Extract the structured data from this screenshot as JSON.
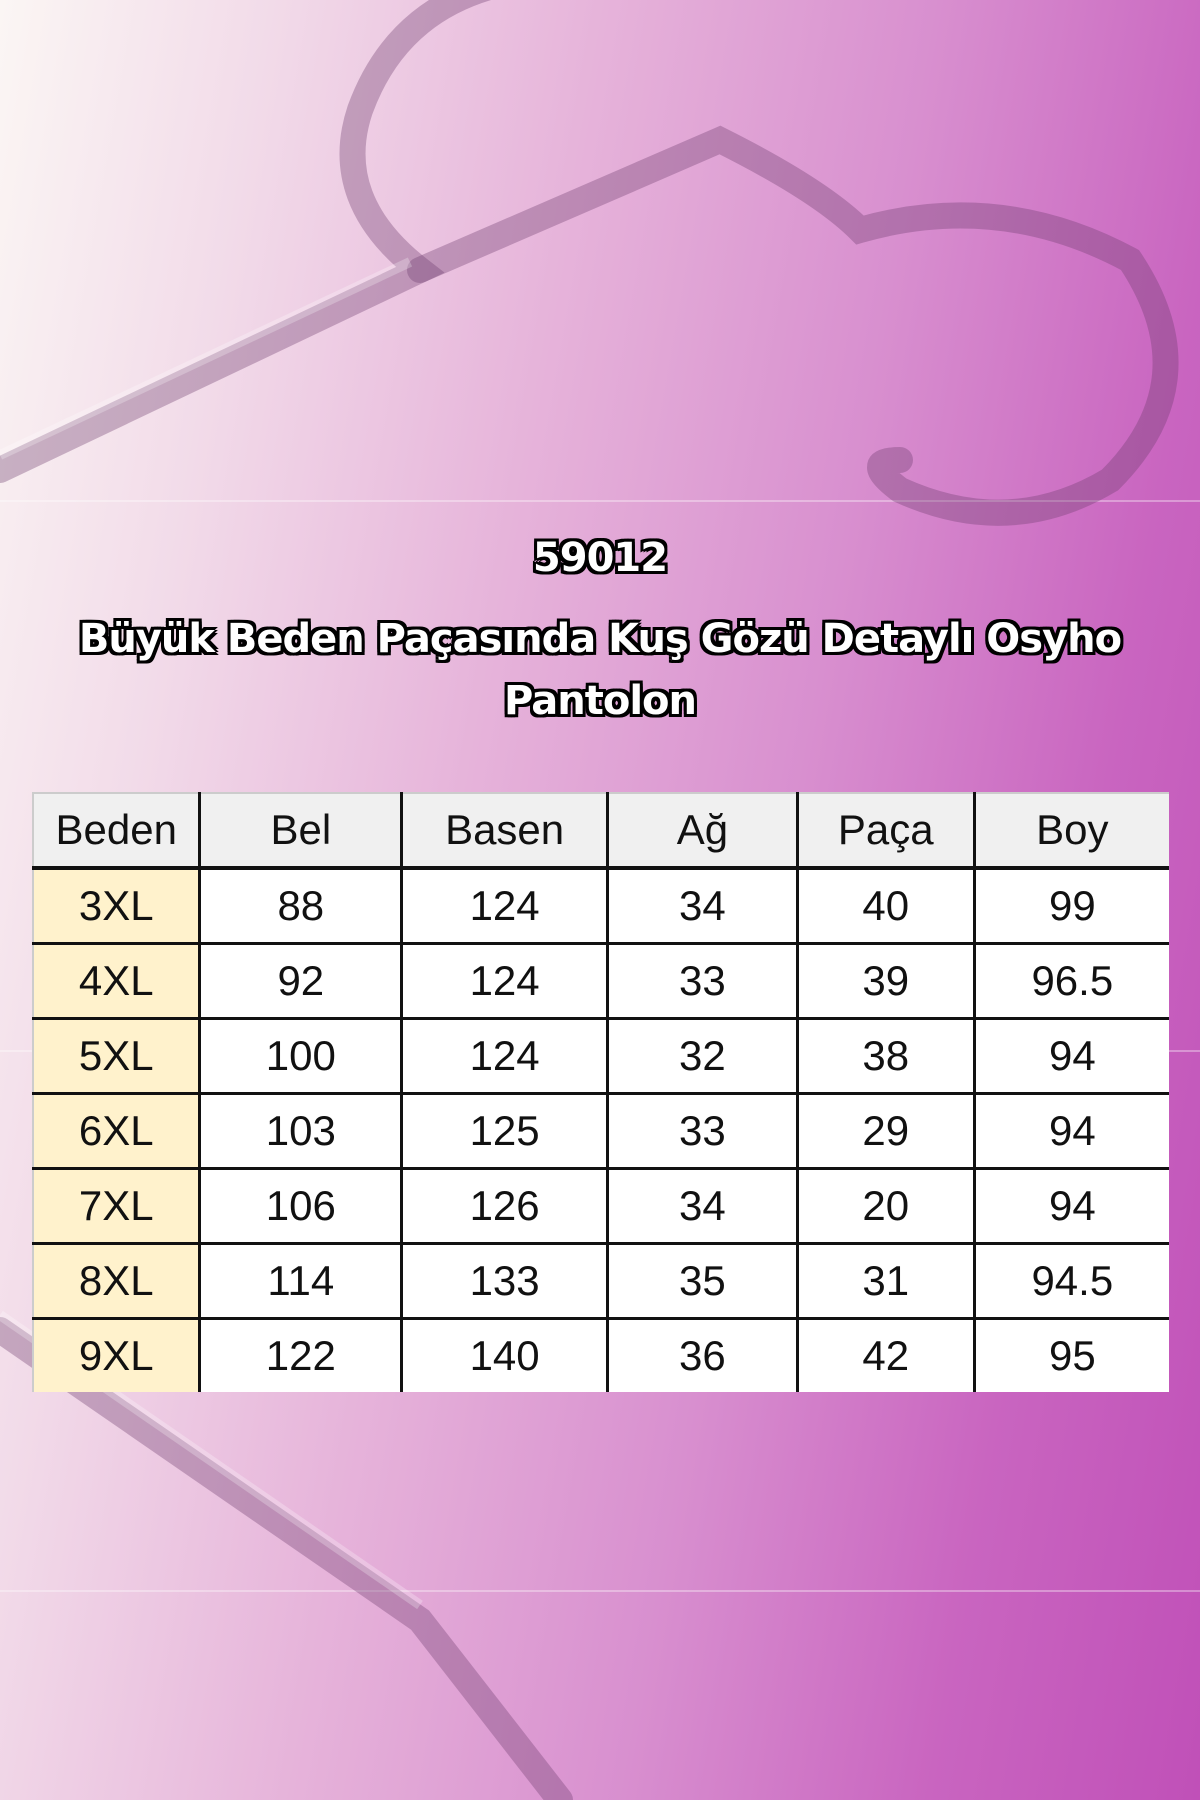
{
  "product": {
    "code": "59012",
    "name": "Büyük Beden Paçasında Kuş Gözü Detaylı Osyho Pantolon"
  },
  "size_table": {
    "headers": [
      "Beden",
      "Bel",
      "Basen",
      "Ağ",
      "Paça",
      "Boy"
    ],
    "rows": [
      [
        "3XL",
        "88",
        "124",
        "34",
        "40",
        "99"
      ],
      [
        "4XL",
        "92",
        "124",
        "33",
        "39",
        "96.5"
      ],
      [
        "5XL",
        "100",
        "124",
        "32",
        "38",
        "94"
      ],
      [
        "6XL",
        "103",
        "125",
        "33",
        "29",
        "94"
      ],
      [
        "7XL",
        "106",
        "126",
        "34",
        "20",
        "94"
      ],
      [
        "8XL",
        "114",
        "133",
        "35",
        "31",
        "94.5"
      ],
      [
        "9XL",
        "122",
        "140",
        "36",
        "42",
        "95"
      ]
    ]
  },
  "colors": {
    "background_left": "#fbf6f4",
    "background_right": "#c050b8",
    "size_cell": "#fff2cc",
    "header_cell": "#f0f0f0"
  }
}
